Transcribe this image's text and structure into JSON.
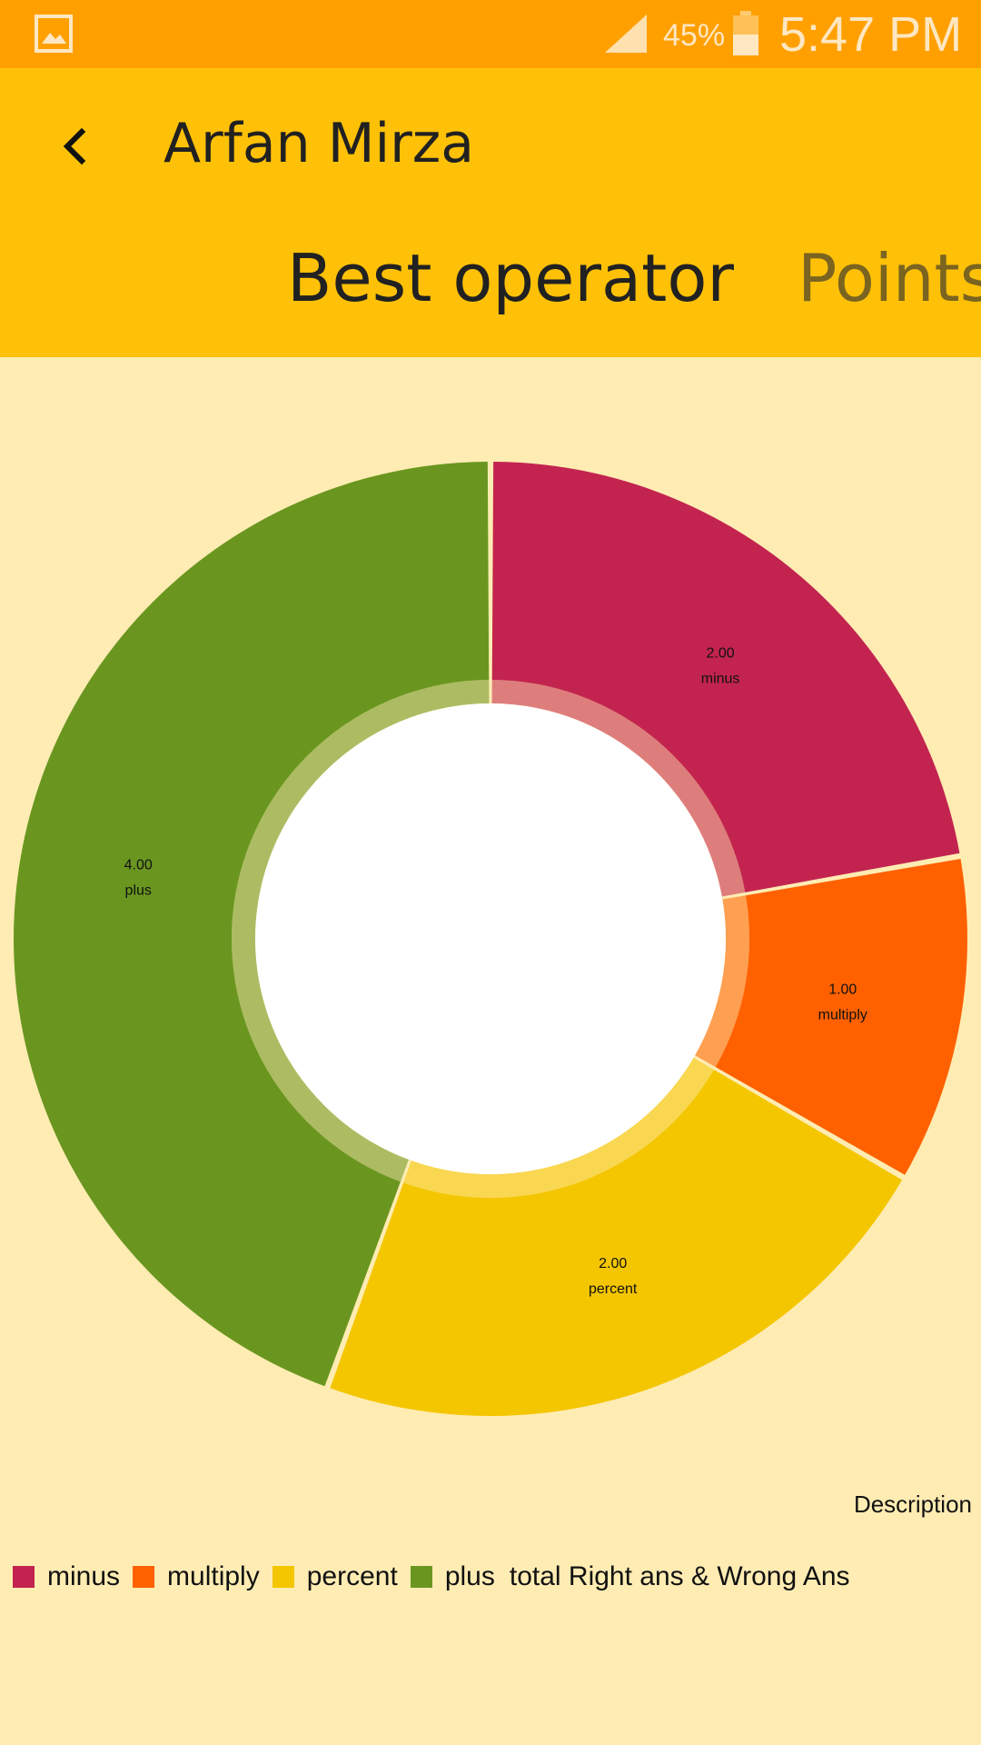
{
  "status_bar": {
    "battery_percent": "45%",
    "time": "5:47 PM",
    "icons": [
      "gallery-icon",
      "signal-icon",
      "battery-icon"
    ]
  },
  "app_bar": {
    "back_icon": "chevron-left-icon",
    "title": "Arfan Mirza",
    "tabs": [
      {
        "label": "Best operator",
        "selected": true
      },
      {
        "label": "Points",
        "selected": false
      }
    ]
  },
  "chart_data": {
    "type": "pie",
    "donut": true,
    "categories": [
      "minus",
      "multiply",
      "percent",
      "plus"
    ],
    "values": [
      2.0,
      1.0,
      2.0,
      4.0
    ],
    "value_labels": [
      "2.00",
      "1.00",
      "2.00",
      "4.00"
    ],
    "colors": [
      "#C2244F",
      "#FF6100",
      "#F4C600",
      "#6A9620"
    ],
    "description": "Description",
    "legend": {
      "position": "bottom-left",
      "entries": [
        "minus",
        "multiply",
        "percent",
        "plus"
      ],
      "extra_text": "total Right ans & Wrong Ans"
    }
  },
  "colors": {
    "status_bar": "#FFA000",
    "app_bar": "#FFC107",
    "background": "#FFECB3"
  }
}
